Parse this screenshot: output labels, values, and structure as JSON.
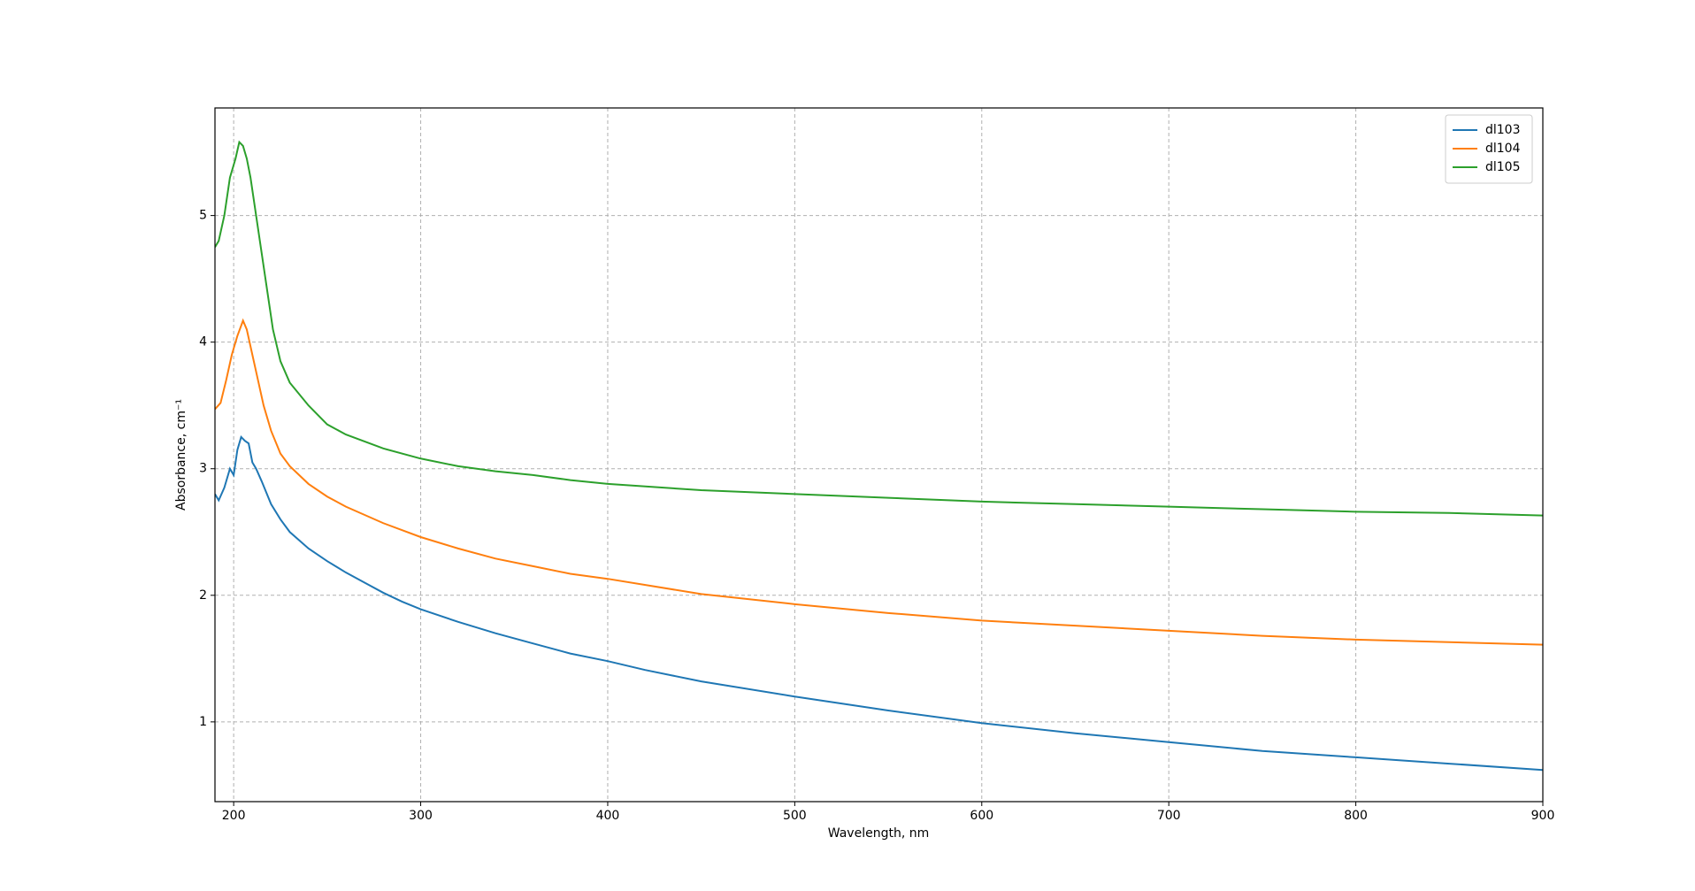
{
  "chart_data": {
    "type": "line",
    "xlabel": "Wavelength, nm",
    "ylabel": "Absorbance, cm⁻¹",
    "xlim": [
      190,
      900
    ],
    "ylim": [
      0.37,
      5.85
    ],
    "xticks": [
      200,
      300,
      400,
      500,
      600,
      700,
      800,
      900
    ],
    "yticks": [
      1,
      2,
      3,
      4,
      5
    ],
    "grid": true,
    "legend": "upper right",
    "series": [
      {
        "name": "dl103",
        "color": "#1f77b4",
        "x": [
          190,
          192,
          195,
          198,
          200,
          202,
          204,
          206,
          208,
          210,
          212,
          215,
          220,
          225,
          230,
          240,
          250,
          260,
          270,
          280,
          290,
          300,
          320,
          340,
          360,
          380,
          400,
          420,
          450,
          500,
          550,
          600,
          650,
          700,
          750,
          800,
          850,
          900
        ],
        "values": [
          2.8,
          2.75,
          2.85,
          3.0,
          2.95,
          3.15,
          3.25,
          3.22,
          3.2,
          3.05,
          3.0,
          2.9,
          2.72,
          2.6,
          2.5,
          2.37,
          2.27,
          2.18,
          2.1,
          2.02,
          1.95,
          1.89,
          1.79,
          1.7,
          1.62,
          1.54,
          1.48,
          1.41,
          1.32,
          1.2,
          1.09,
          0.99,
          0.91,
          0.84,
          0.77,
          0.72,
          0.67,
          0.62
        ]
      },
      {
        "name": "dl104",
        "color": "#ff7f0e",
        "x": [
          190,
          193,
          196,
          199,
          202,
          205,
          207,
          210,
          213,
          216,
          220,
          225,
          230,
          240,
          250,
          260,
          280,
          300,
          320,
          340,
          360,
          380,
          400,
          450,
          500,
          550,
          600,
          650,
          700,
          750,
          800,
          850,
          900
        ],
        "values": [
          3.47,
          3.52,
          3.7,
          3.9,
          4.05,
          4.17,
          4.1,
          3.9,
          3.7,
          3.5,
          3.3,
          3.12,
          3.02,
          2.88,
          2.78,
          2.7,
          2.57,
          2.46,
          2.37,
          2.29,
          2.23,
          2.17,
          2.13,
          2.01,
          1.93,
          1.86,
          1.8,
          1.76,
          1.72,
          1.68,
          1.65,
          1.63,
          1.61
        ]
      },
      {
        "name": "dl105",
        "color": "#2ca02c",
        "x": [
          190,
          192,
          195,
          198,
          201,
          203,
          205,
          207,
          209,
          212,
          215,
          218,
          221,
          225,
          230,
          240,
          250,
          260,
          280,
          300,
          320,
          340,
          360,
          380,
          400,
          450,
          500,
          550,
          600,
          650,
          700,
          750,
          800,
          850,
          900
        ],
        "values": [
          4.75,
          4.8,
          5.0,
          5.3,
          5.45,
          5.58,
          5.55,
          5.45,
          5.3,
          5.0,
          4.7,
          4.4,
          4.1,
          3.85,
          3.68,
          3.5,
          3.35,
          3.27,
          3.16,
          3.08,
          3.02,
          2.98,
          2.95,
          2.91,
          2.88,
          2.83,
          2.8,
          2.77,
          2.74,
          2.72,
          2.7,
          2.68,
          2.66,
          2.65,
          2.63
        ]
      }
    ]
  }
}
